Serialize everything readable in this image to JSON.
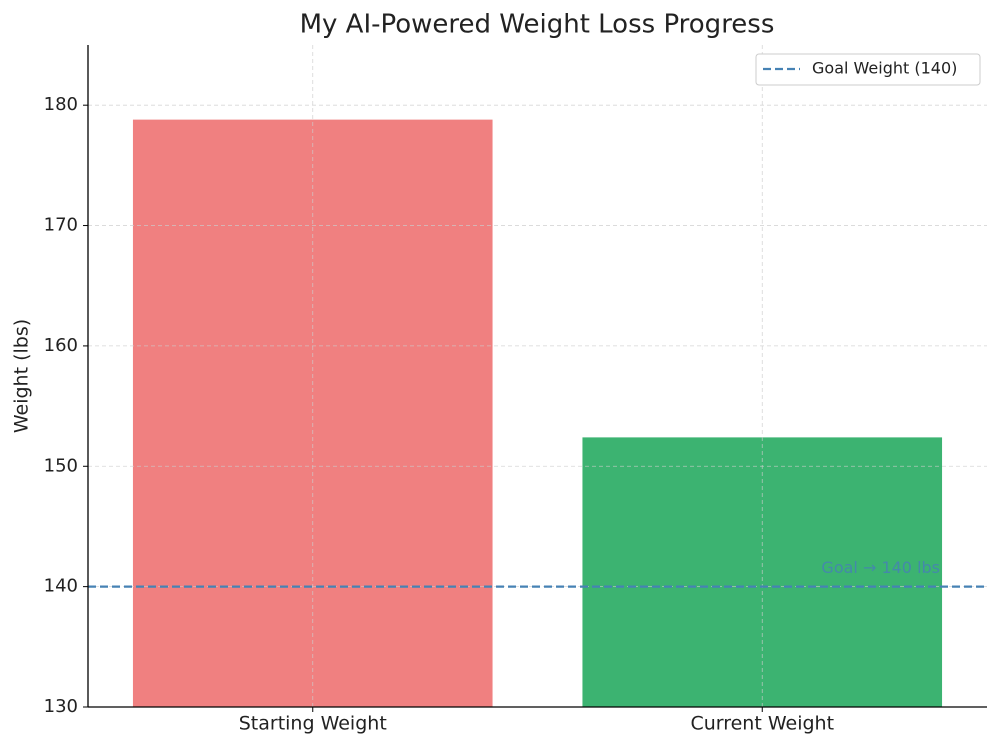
{
  "chart_data": {
    "type": "bar",
    "title": "My AI-Powered Weight Loss Progress",
    "y_label": "Weight (lbs)",
    "categories": [
      "Starting Weight",
      "Current Weight"
    ],
    "values": [
      178.8,
      152.4
    ],
    "colors": [
      "#f08080",
      "#3cb371"
    ],
    "ylim": [
      130,
      185
    ],
    "yticks": [
      130,
      140,
      150,
      160,
      170,
      180
    ],
    "grid": true,
    "reference_line": {
      "value": 140,
      "name": "Goal Weight (140)",
      "color": "#4682b4",
      "style": "dashed"
    },
    "annotations": [
      {
        "text": "Goal → 140 lbs"
      }
    ],
    "legend": "upper right"
  }
}
